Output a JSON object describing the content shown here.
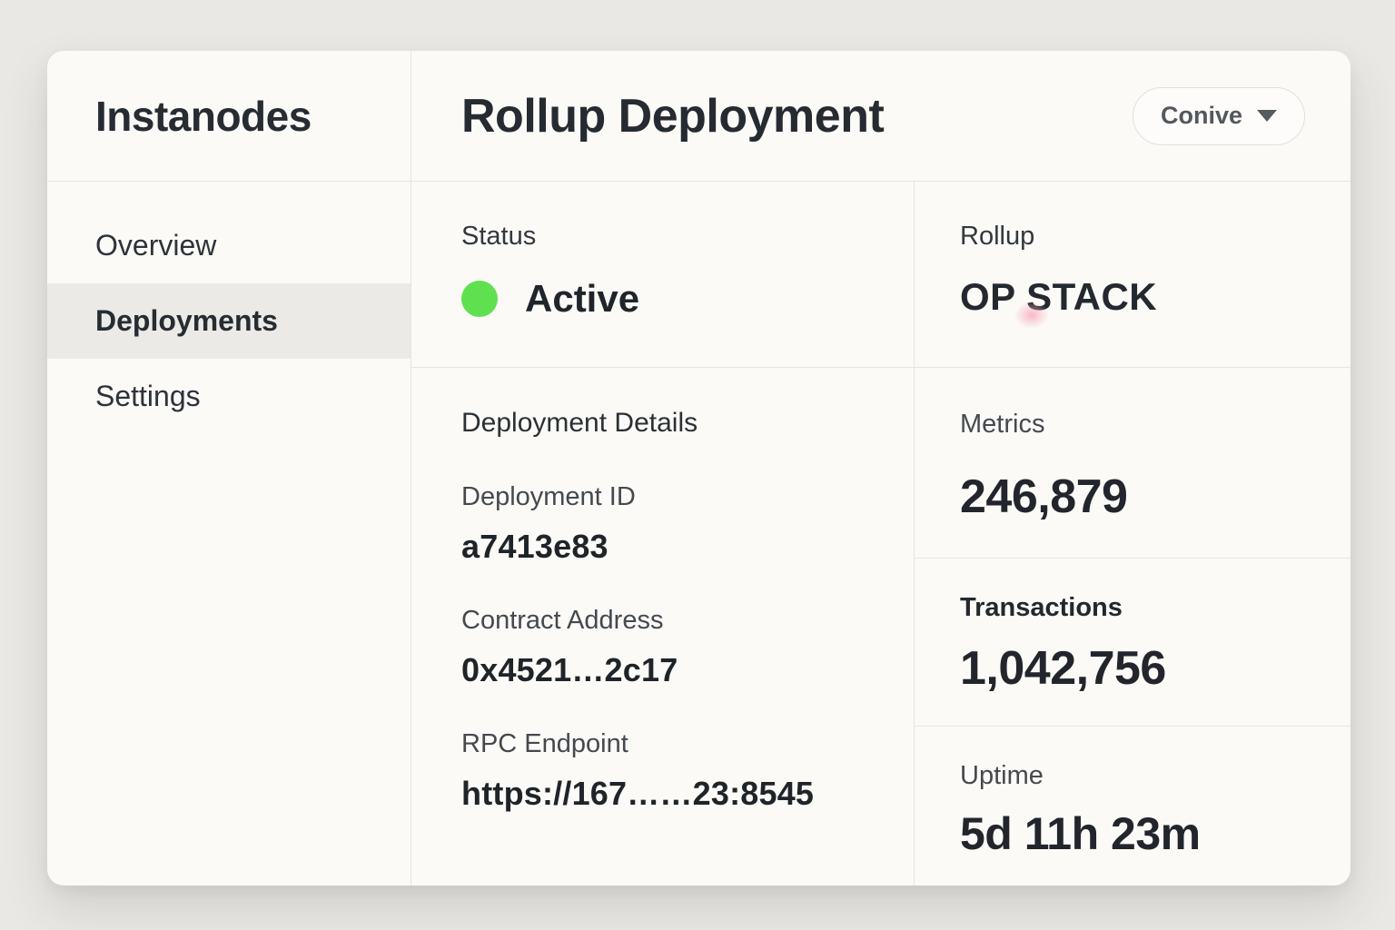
{
  "app": {
    "brand": "Instanodes"
  },
  "sidebar": {
    "items": [
      {
        "label": "Overview",
        "active": false
      },
      {
        "label": "Deployments",
        "active": true
      },
      {
        "label": "Settings",
        "active": false
      }
    ]
  },
  "header": {
    "title": "Rollup Deployment",
    "workspace_selector": {
      "label": "Conive"
    }
  },
  "status": {
    "label": "Status",
    "value": "Active",
    "indicator_color": "#5fe04f"
  },
  "rollup": {
    "label": "Rollup",
    "value": "OP STACK"
  },
  "deployment_details": {
    "title": "Deployment Details",
    "fields": [
      {
        "label": "Deployment ID",
        "value": "a7413e83"
      },
      {
        "label": "Contract Address",
        "value": "0x4521…2c17"
      },
      {
        "label": "RPC Endpoint",
        "value": "https://167……23:8545"
      }
    ]
  },
  "metrics": [
    {
      "label": "Metrics",
      "value": "246,879"
    },
    {
      "label": "Transactions",
      "value": "1,042,756"
    },
    {
      "label": "Uptime",
      "value": "5d 11h 23m"
    }
  ],
  "colors": {
    "status_green": "#5fe04f",
    "smudge_pink": "#f6a8b8"
  }
}
